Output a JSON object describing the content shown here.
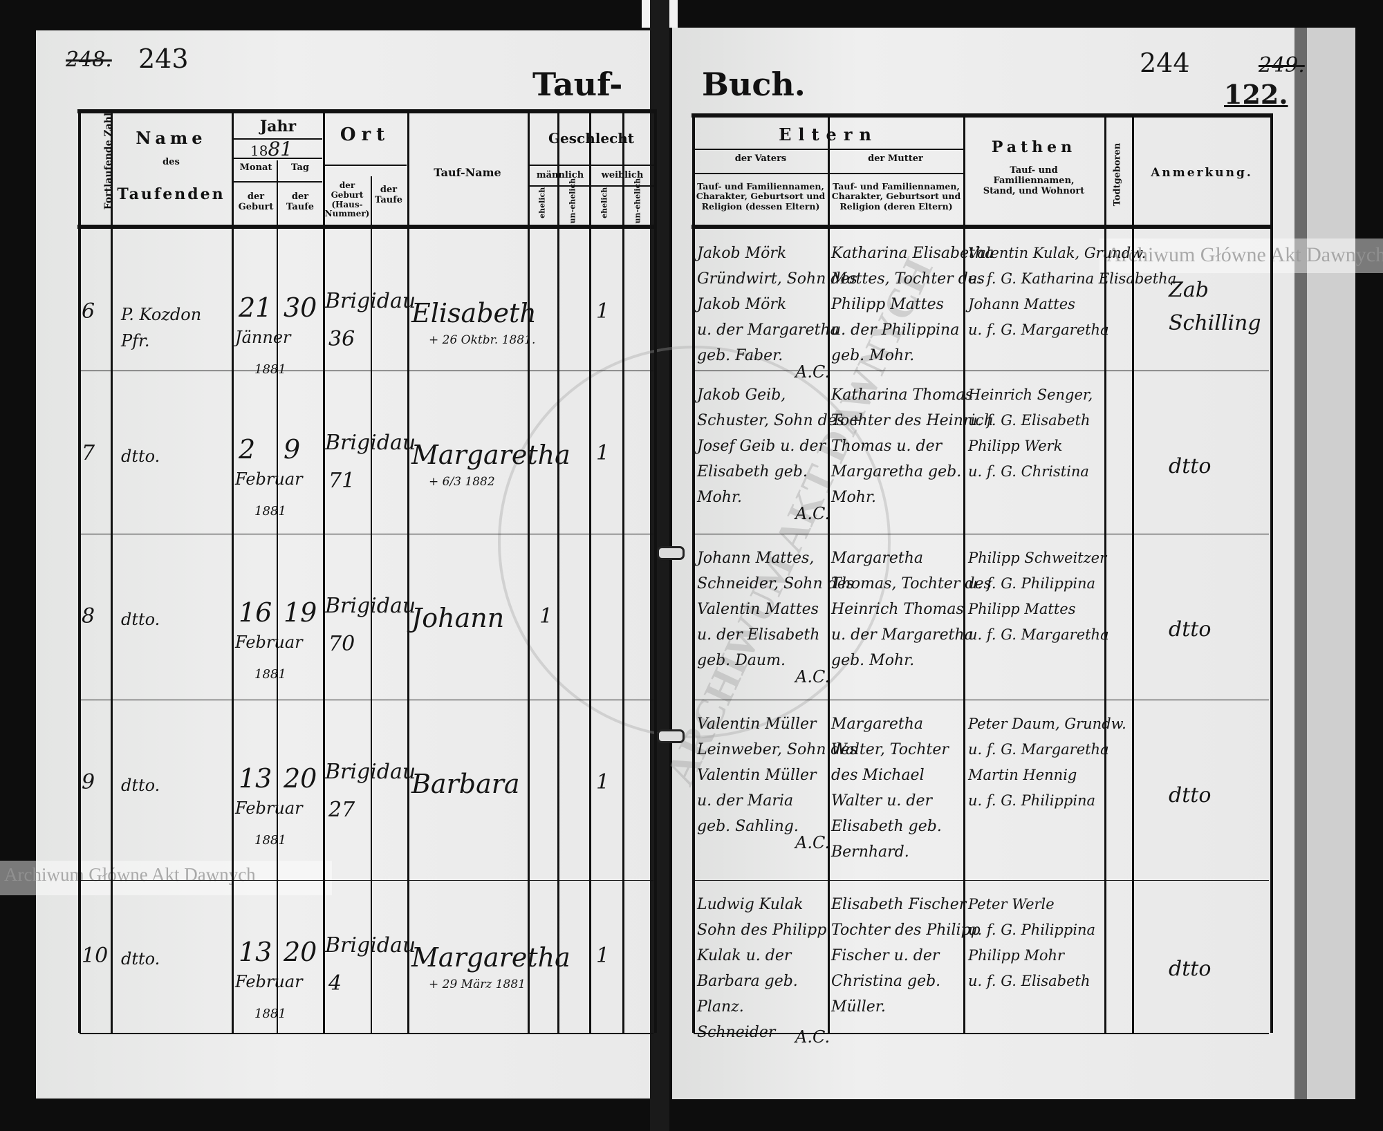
{
  "page_numbers": {
    "left_struck": "248.",
    "left": "243",
    "right": "244",
    "right_struck": "249.",
    "folio": "122."
  },
  "title": {
    "left": "Tauf-",
    "right": "Buch."
  },
  "watermark": "Archiwum Główne Akt Dawnych",
  "seal_text": "ARCHIWUM AKT DAWNYCH",
  "left_header": {
    "number": "Fortlaufende Zahl",
    "name": [
      "Name",
      "des",
      "Taufenden"
    ],
    "jahr": "Jahr",
    "year_printed": "18",
    "year_written": "81",
    "monat": "Monat",
    "tag": "Tag",
    "der_geburt": "der Geburt",
    "der_taufe": "der Taufe",
    "ort": "Ort",
    "ort_geburt": "der Geburt (Haus-Nummer)",
    "ort_taufe": "der Taufe",
    "tauf_name": "Tauf-Name",
    "geschlecht": "Geschlecht",
    "maennlich": "männlich",
    "weiblich": "weiblich",
    "ehelich": "ehelich",
    "unehelich": "un-ehelich"
  },
  "right_header": {
    "eltern": "Eltern",
    "vater": "der Vaters",
    "mutter": "der Mutter",
    "vater_desc": "Tauf- und Familiennamen, Charakter, Geburtsort und Religion (dessen Eltern)",
    "mutter_desc": "Tauf- und Familiennamen, Charakter, Geburtsort und Religion (deren Eltern)",
    "pathen": "Pathen",
    "pathen_desc": "Tauf- und Familiennamen, Stand, und Wohnort",
    "todtgeboren": "Todtgeboren",
    "anmerkung": "Anmerkung."
  },
  "rows": [
    {
      "nr": "6",
      "taufender": "P. Kozdon\nPfr.",
      "monat_geburt": "Jänner",
      "tag_geburt": "21",
      "tag_taufe": "30",
      "year_note": "1881",
      "ort": "Brigidau",
      "haus": "36",
      "tauf_name": "Elisabeth",
      "death_note": "+ 26 Oktbr. 1881.",
      "sex_mark": "1",
      "vater": [
        "Jakob Mörk",
        "Gründwirt, Sohn des",
        "Jakob Mörk",
        "u. der Margaretha",
        "geb. Faber."
      ],
      "mutter": [
        "Katharina Elisabetha",
        "Mattes, Tochter des",
        "Philipp Mattes",
        "u. der Philippina",
        "geb. Mohr."
      ],
      "religion": "A.C.",
      "pathen": [
        "Valentin Kulak, Grundw.",
        "u. f. G. Katharina Elisabetha",
        "Johann Mattes",
        "u. f. G. Margaretha"
      ],
      "anmerkung": "Zab Schilling"
    },
    {
      "nr": "7",
      "taufender": "dtto.",
      "monat_geburt": "Februar",
      "tag_geburt": "2",
      "tag_taufe": "9",
      "year_note": "1881",
      "ort": "Brigidau",
      "haus": "71",
      "tauf_name": "Margaretha",
      "death_note": "+ 6/3 1882",
      "sex_mark": "1",
      "vater": [
        "Jakob Geib,",
        "Schuster, Sohn des +",
        "Josef Geib u. der",
        "Elisabeth geb.",
        "Mohr."
      ],
      "mutter": [
        "Katharina Thomas",
        "Tochter des Heinrich",
        "Thomas u. der",
        "Margaretha geb.",
        "Mohr."
      ],
      "religion": "A.C.",
      "pathen": [
        "Heinrich Senger,",
        "u. f. G. Elisabeth",
        "Philipp Werk",
        "u. f. G. Christina"
      ],
      "anmerkung": "dtto"
    },
    {
      "nr": "8",
      "taufender": "dtto.",
      "monat_geburt": "Februar",
      "tag_geburt": "16",
      "tag_taufe": "19",
      "year_note": "1881",
      "ort": "Brigidau",
      "haus": "70",
      "tauf_name": "Johann",
      "death_note": "",
      "sex_mark": "1",
      "vater": [
        "Johann Mattes,",
        "Schneider, Sohn des",
        "Valentin Mattes",
        "u. der Elisabeth",
        "geb. Daum."
      ],
      "mutter": [
        "Margaretha",
        "Thomas, Tochter des",
        "Heinrich Thomas",
        "u. der Margaretha",
        "geb. Mohr."
      ],
      "religion": "A.C.",
      "pathen": [
        "Philipp Schweitzer",
        "u. f. G. Philippina",
        "Philipp Mattes",
        "u. f. G. Margaretha"
      ],
      "anmerkung": "dtto"
    },
    {
      "nr": "9",
      "taufender": "dtto.",
      "monat_geburt": "Februar",
      "tag_geburt": "13",
      "tag_taufe": "20",
      "year_note": "1881",
      "ort": "Brigidau",
      "haus": "27",
      "tauf_name": "Barbara",
      "death_note": "",
      "sex_mark": "1",
      "vater": [
        "Valentin Müller",
        "Leinweber, Sohn des",
        "Valentin Müller",
        "u. der Maria",
        "geb. Sahling."
      ],
      "mutter": [
        "Margaretha",
        "Walter, Tochter",
        "des Michael",
        "Walter u. der",
        "Elisabeth geb.",
        "Bernhard."
      ],
      "religion": "A.C.",
      "pathen": [
        "Peter Daum, Grundw.",
        "u. f. G. Margaretha",
        "Martin Hennig",
        "u. f. G. Philippina"
      ],
      "anmerkung": "dtto"
    },
    {
      "nr": "10",
      "taufender": "dtto.",
      "monat_geburt": "Februar",
      "tag_geburt": "13",
      "tag_taufe": "20",
      "year_note": "1881",
      "ort": "Brigidau",
      "haus": "4",
      "tauf_name": "Margaretha",
      "death_note": "+ 29 März 1881",
      "sex_mark": "1",
      "vater": [
        "Ludwig Kulak",
        "Sohn des Philipp",
        "Kulak u. der",
        "Barbara geb.",
        "Planz.",
        "Schneider"
      ],
      "mutter": [
        "Elisabeth Fischer",
        "Tochter des Philipp",
        "Fischer u. der",
        "Christina geb.",
        "Müller."
      ],
      "religion": "A.C.",
      "pathen": [
        "Peter Werle",
        "u. f. G. Philippina",
        "Philipp Mohr",
        "u. f. G. Elisabeth"
      ],
      "anmerkung": "dtto"
    }
  ]
}
